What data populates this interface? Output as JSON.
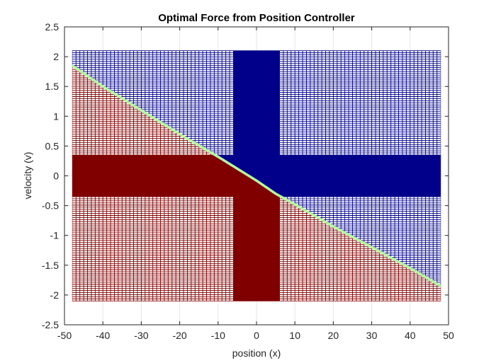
{
  "chart_data": {
    "type": "heatmap",
    "title": "Optimal Force from Position Controller",
    "xlabel": "position (x)",
    "ylabel": "velocity (v)",
    "xlim": [
      -50,
      50
    ],
    "ylim": [
      -2.5,
      2.5
    ],
    "xticks": [
      -50,
      -40,
      -30,
      -20,
      -10,
      0,
      10,
      20,
      30,
      40,
      50
    ],
    "yticks": [
      -2.5,
      -2,
      -1.5,
      -1,
      -0.5,
      0,
      0.5,
      1,
      1.5,
      2,
      2.5
    ],
    "grid": true,
    "grid_domain": {
      "x": [
        -48,
        48
      ],
      "v": [
        -2.1,
        2.1
      ]
    },
    "dense_region": {
      "x": [
        -6,
        6
      ],
      "v": [
        -0.35,
        0.35
      ]
    },
    "switching_curve": {
      "x": [
        -48,
        -40,
        -30,
        -20,
        -10,
        -5,
        0,
        5,
        10,
        20,
        30,
        40,
        48
      ],
      "v": [
        1.85,
        1.5,
        1.1,
        0.7,
        0.32,
        0.12,
        -0.08,
        -0.3,
        -0.48,
        -0.85,
        -1.2,
        -1.55,
        -1.85
      ]
    },
    "colors": {
      "positive_force": "#00008B",
      "negative_force": "#800000",
      "switching_curve": "#B8F5A0"
    }
  }
}
